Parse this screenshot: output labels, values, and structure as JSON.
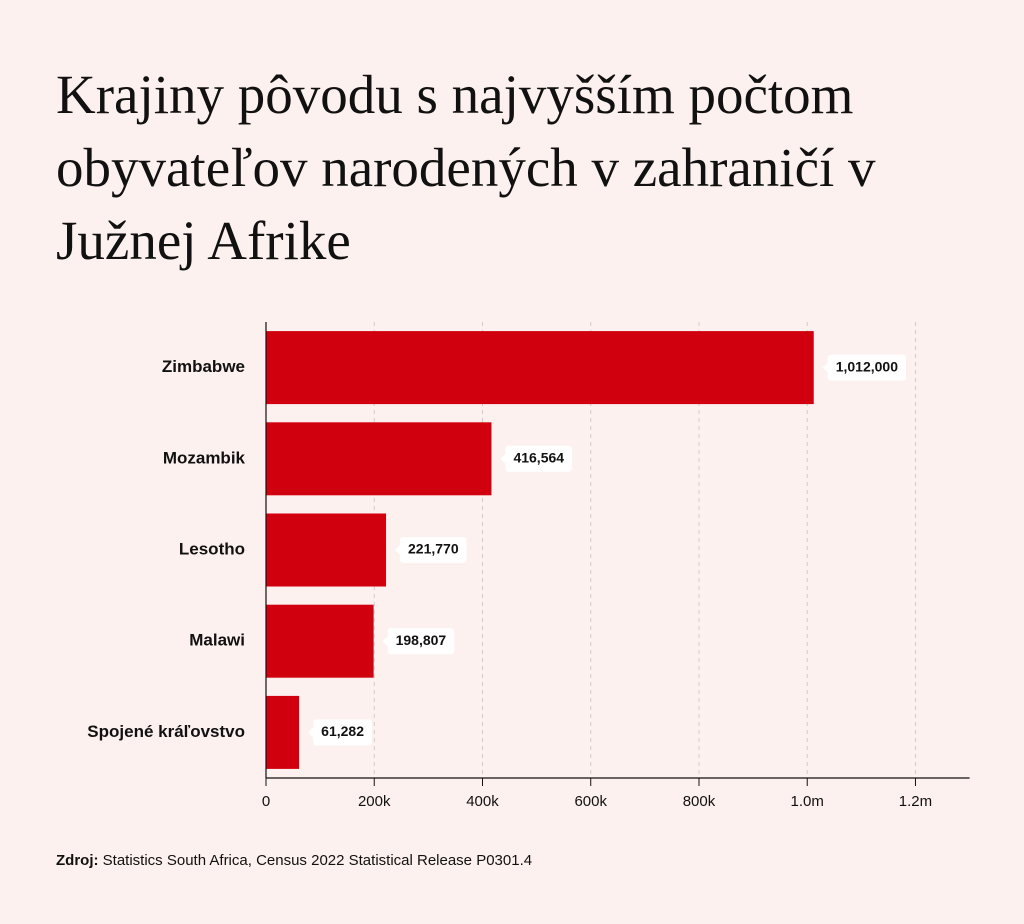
{
  "chart_data": {
    "type": "bar",
    "orientation": "horizontal",
    "title": "Krajiny pôvodu s najvyšším počtom obyvateľov narodených v zahraničí v Južnej Afrike",
    "categories": [
      "Zimbabwe",
      "Mozambik",
      "Lesotho",
      "Malawi",
      "Spojené kráľovstvo"
    ],
    "values": [
      1012000,
      416564,
      221770,
      198807,
      61282
    ],
    "value_labels": [
      "1,012,000",
      "416,564",
      "221,770",
      "198,807",
      "61,282"
    ],
    "color": "#d1000f",
    "xlim": [
      0,
      1300000
    ],
    "xticks": [
      0,
      {
        "value": 200000,
        "label": "200k"
      },
      {
        "value": 400000,
        "label": "400k"
      },
      {
        "value": 600000,
        "label": "600k"
      },
      {
        "value": 800000,
        "label": "800k"
      },
      {
        "value": 1000000,
        "label": "1.0m"
      },
      {
        "value": 1200000,
        "label": "1.2m"
      }
    ],
    "grid": true,
    "source_label": "Zdroj:",
    "source": "Statistics South Africa, Census 2022 Statistical Release P0301.4"
  }
}
